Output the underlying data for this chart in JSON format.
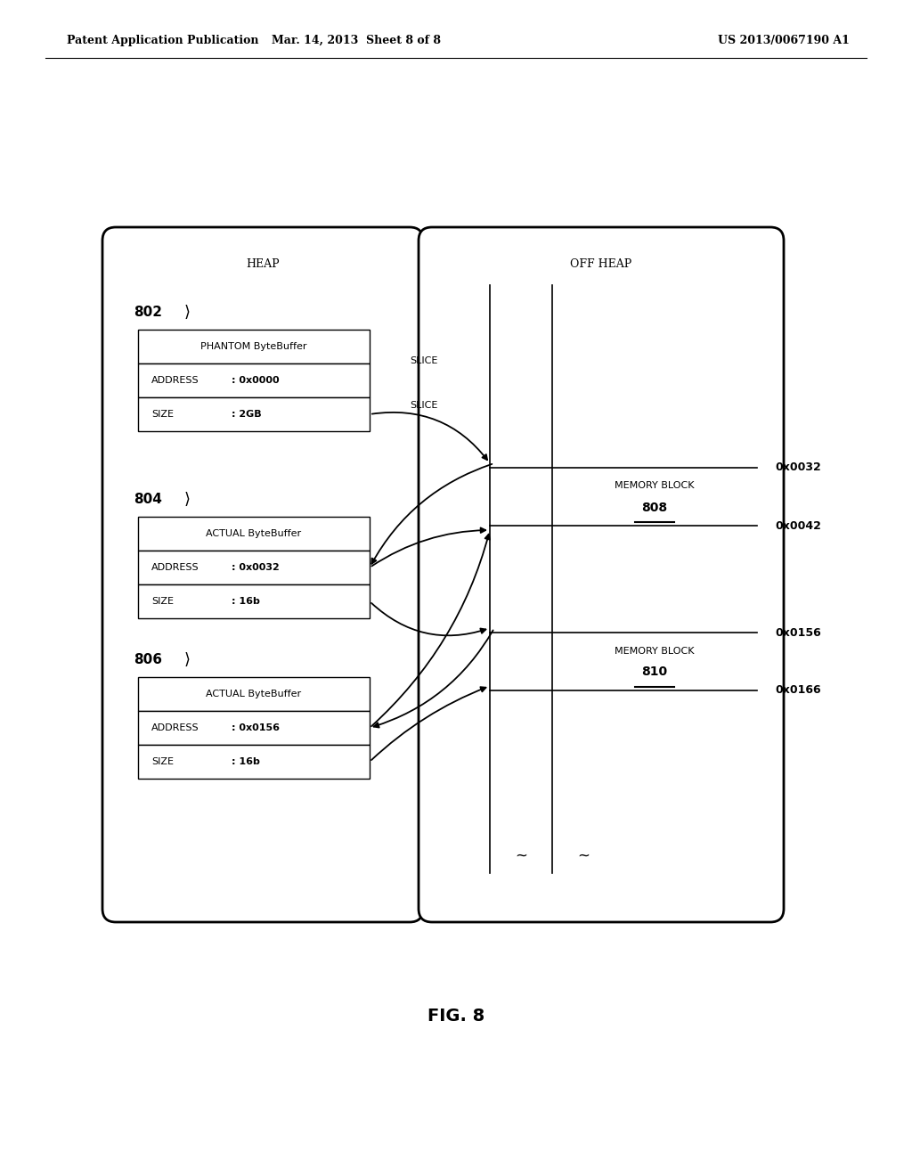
{
  "header_left": "Patent Application Publication",
  "header_mid": "Mar. 14, 2013  Sheet 8 of 8",
  "header_right": "US 2013/0067190 A1",
  "fig_label": "FIG. 8",
  "heap_label": "HEAP",
  "offheap_label": "OFF HEAP",
  "label_802": "802",
  "label_804": "804",
  "label_806": "806",
  "phantom_title": "PHANTOM ByteBuffer",
  "actual_title1": "ACTUAL ByteBuffer",
  "actual_title2": "ACTUAL ByteBuffer",
  "addr_label": "ADDRESS",
  "size_label": "SIZE",
  "addr_802": ": 0x0000",
  "size_802": ": 2GB",
  "addr_804": ": 0x0032",
  "size_804": ": 16b",
  "addr_806": ": 0x0156",
  "size_806": ": 16b",
  "slice_label1": "SLICE",
  "slice_label2": "SLICE",
  "memory_block_label": "MEMORY BLOCK",
  "block_808": "808",
  "block_810": "810",
  "addr_0032": "0x0032",
  "addr_0042": "0x0042",
  "addr_0156": "0x0156",
  "addr_0166": "0x0166",
  "background_color": "#ffffff",
  "box_color": "#ffffff",
  "line_color": "#000000"
}
